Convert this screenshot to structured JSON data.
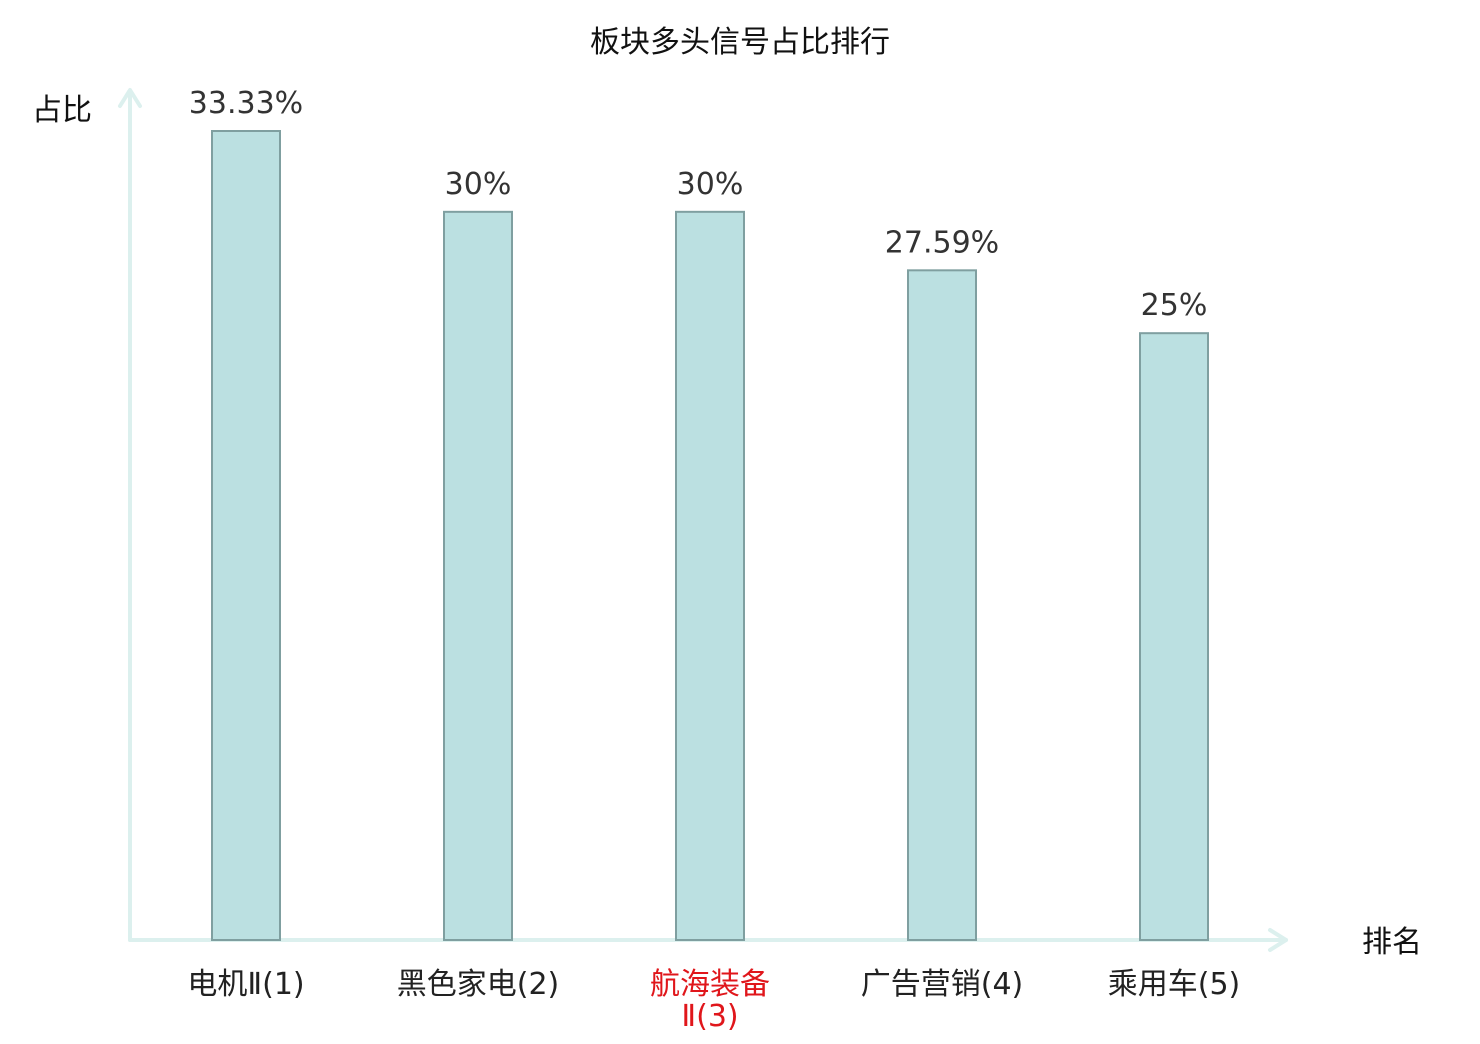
{
  "chart_data": {
    "type": "bar",
    "title": "板块多头信号占比排行",
    "xlabel": "排名",
    "ylabel": "占比",
    "categories": [
      "电机Ⅱ(1)",
      "黑色家电(2)",
      "航海装备Ⅱ(3)",
      "广告营销(4)",
      "乘用车(5)"
    ],
    "category_lines": [
      [
        "电机Ⅱ(1)"
      ],
      [
        "黑色家电(2)"
      ],
      [
        "航海装备",
        "Ⅱ(3)"
      ],
      [
        "广告营销(4)"
      ],
      [
        "乘用车(5)"
      ]
    ],
    "values": [
      33.33,
      30,
      30,
      27.59,
      25
    ],
    "value_labels": [
      "33.33%",
      "30%",
      "30%",
      "27.59%",
      "25%"
    ],
    "highlight_index": 2,
    "ylim": [
      0,
      33.33
    ],
    "grid": false,
    "legend": "none",
    "colors": {
      "bar_fill": "#bbe0e1",
      "bar_stroke": "#7f9fa0",
      "axis": "#dcf0ee",
      "highlight_label": "#e0161b"
    }
  }
}
